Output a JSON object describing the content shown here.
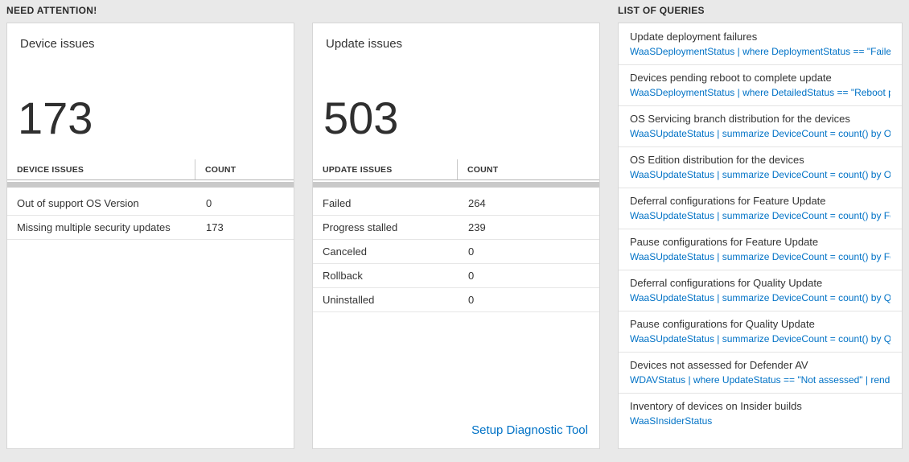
{
  "sections": {
    "need_attention": "NEED ATTENTION!",
    "list_of_queries": "LIST OF QUERIES"
  },
  "device_card": {
    "title": "Device issues",
    "count": "173",
    "table": {
      "headers": [
        "DEVICE ISSUES",
        "COUNT"
      ],
      "rows": [
        {
          "label": "Out of support OS Version",
          "count": "0"
        },
        {
          "label": "Missing multiple security updates",
          "count": "173"
        }
      ]
    }
  },
  "update_card": {
    "title": "Update issues",
    "count": "503",
    "table": {
      "headers": [
        "UPDATE ISSUES",
        "COUNT"
      ],
      "rows": [
        {
          "label": "Failed",
          "count": "264"
        },
        {
          "label": "Progress stalled",
          "count": "239"
        },
        {
          "label": "Canceled",
          "count": "0"
        },
        {
          "label": "Rollback",
          "count": "0"
        },
        {
          "label": "Uninstalled",
          "count": "0"
        }
      ]
    },
    "link_label": "Setup Diagnostic Tool"
  },
  "queries": {
    "items": [
      {
        "title": "Update deployment failures",
        "query": "WaaSDeploymentStatus | where DeploymentStatus == \"Failed\" |..."
      },
      {
        "title": "Devices pending reboot to complete update",
        "query": "WaaSDeploymentStatus | where DetailedStatus == \"Reboot pend..."
      },
      {
        "title": "OS Servicing branch distribution for the devices",
        "query": "WaaSUpdateStatus | summarize DeviceCount = count() by OSSer..."
      },
      {
        "title": "OS Edition distribution for the devices",
        "query": "WaaSUpdateStatus | summarize DeviceCount = count() by OSEdit..."
      },
      {
        "title": "Deferral configurations for Feature Update",
        "query": "WaaSUpdateStatus | summarize DeviceCount = count() by Featur..."
      },
      {
        "title": "Pause configurations for Feature Update",
        "query": "WaaSUpdateStatus | summarize DeviceCount = count() by Featur..."
      },
      {
        "title": "Deferral configurations for Quality Update",
        "query": "WaaSUpdateStatus | summarize DeviceCount = count() by Qualit..."
      },
      {
        "title": "Pause configurations for Quality Update",
        "query": "WaaSUpdateStatus | summarize DeviceCount = count() by Qualit..."
      },
      {
        "title": "Devices not assessed for Defender AV",
        "query": "WDAVStatus | where UpdateStatus == \"Not assessed\" | render ta..."
      },
      {
        "title": "Inventory of devices on Insider builds",
        "query": "WaaSInsiderStatus"
      }
    ]
  },
  "colors": {
    "accent_blue": "#0072c6",
    "background": "#e9e9e9"
  }
}
